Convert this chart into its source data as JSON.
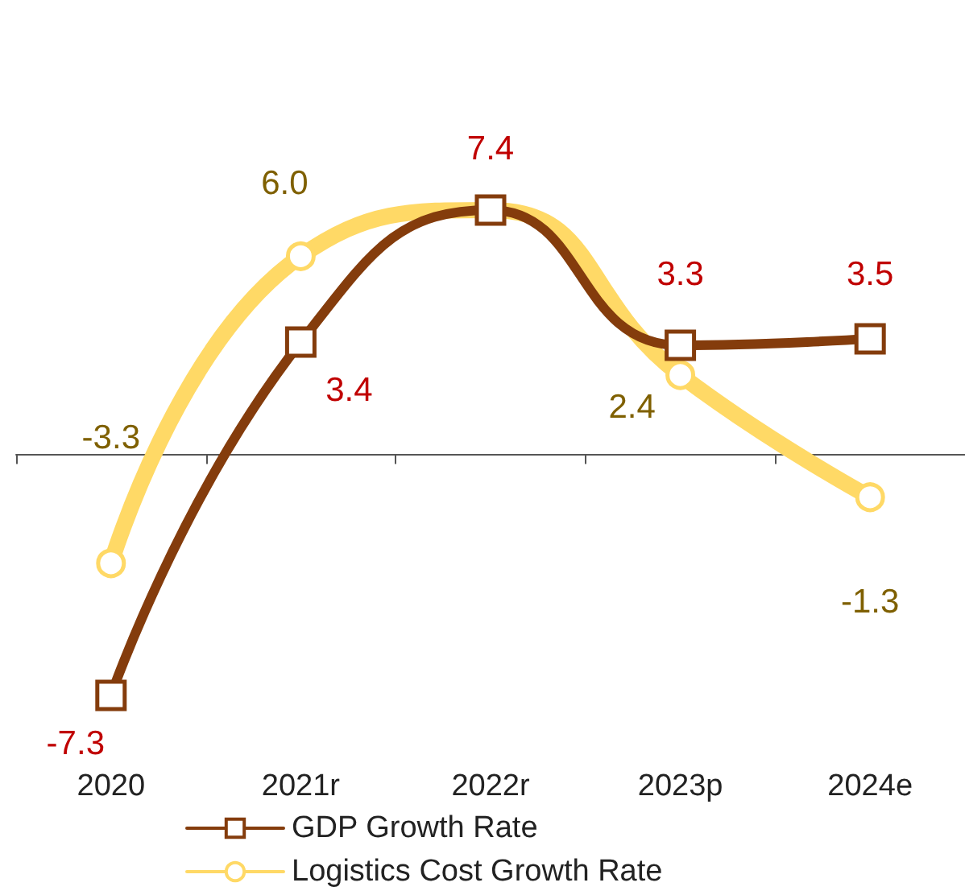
{
  "chart_data": {
    "type": "line",
    "categories": [
      "2020",
      "2021r",
      "2022r",
      "2023p",
      "2024e"
    ],
    "series": [
      {
        "name": "GDP Growth Rate",
        "color": "#843c0c",
        "marker": "square",
        "values": [
          -7.3,
          3.4,
          7.4,
          3.3,
          3.5
        ],
        "value_labels": [
          "-7.3",
          "3.4",
          "7.4",
          "3.3",
          "3.5"
        ]
      },
      {
        "name": "Logistics Cost Growth Rate",
        "color": "#ffd966",
        "marker": "circle",
        "values": [
          -3.3,
          6.0,
          7.4,
          2.4,
          -1.3
        ],
        "value_labels": [
          "-3.3",
          "6.0",
          null,
          "2.4",
          "-1.3"
        ]
      }
    ],
    "legend": "bottom",
    "grid": false,
    "line_style": "solid"
  }
}
